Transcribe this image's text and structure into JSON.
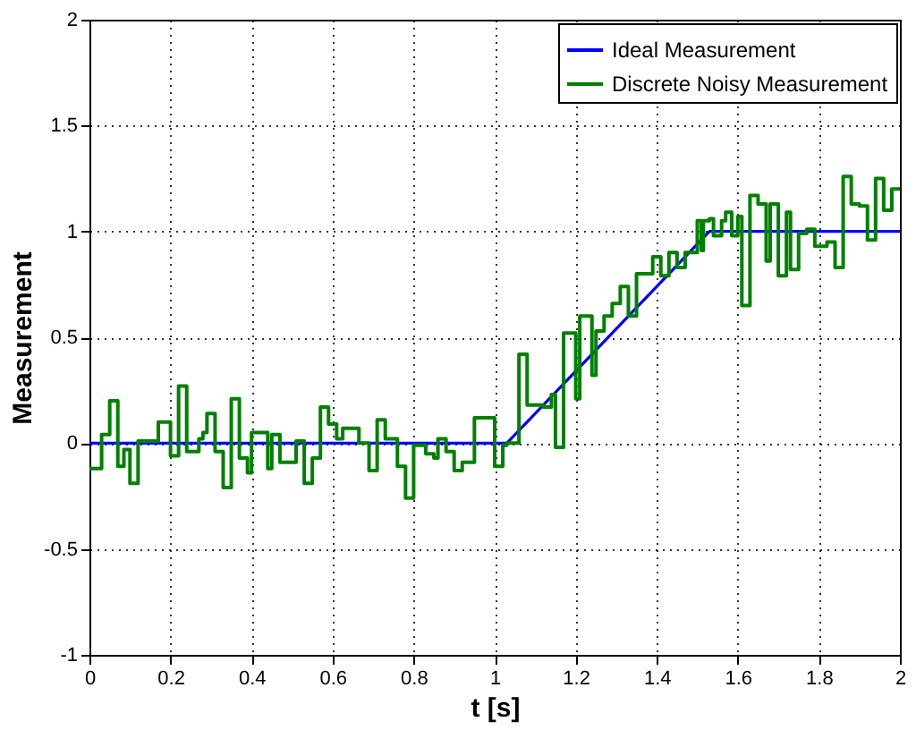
{
  "chart_data": {
    "type": "line",
    "xlabel": "t [s]",
    "ylabel": "Measurement",
    "xlim": [
      0,
      2
    ],
    "xticks": [
      0,
      0.2,
      0.4,
      0.6,
      0.8,
      1,
      1.2,
      1.4,
      1.6,
      1.8,
      2
    ],
    "ylim": [
      -1,
      2
    ],
    "yticks": [
      -1,
      -0.5,
      0,
      0.5,
      1,
      1.5,
      2
    ],
    "grid": true,
    "legend": "top right",
    "marker": "none",
    "line_style": "solid",
    "series": [
      {
        "name": "Ideal Measurement",
        "color": "#0000ff",
        "x": [
          0,
          1.03,
          1.53,
          2
        ],
        "values": [
          0,
          0,
          1,
          1
        ]
      },
      {
        "name": "Discrete Noisy Measurement",
        "color": "#008000",
        "type": "step",
        "x": [
          0,
          0.03,
          0.05,
          0.07,
          0.085,
          0.1,
          0.12,
          0.17,
          0.2,
          0.22,
          0.24,
          0.27,
          0.28,
          0.29,
          0.31,
          0.33,
          0.35,
          0.37,
          0.39,
          0.4,
          0.44,
          0.45,
          0.47,
          0.51,
          0.53,
          0.55,
          0.57,
          0.59,
          0.61,
          0.625,
          0.665,
          0.69,
          0.71,
          0.73,
          0.76,
          0.78,
          0.8,
          0.83,
          0.85,
          0.86,
          0.88,
          0.9,
          0.92,
          0.95,
          1.0,
          1.02,
          1.03,
          1.06,
          1.08,
          1.12,
          1.14,
          1.15,
          1.17,
          1.2,
          1.21,
          1.24,
          1.25,
          1.27,
          1.29,
          1.31,
          1.33,
          1.35,
          1.39,
          1.41,
          1.43,
          1.45,
          1.47,
          1.5,
          1.51,
          1.515,
          1.53,
          1.54,
          1.56,
          1.57,
          1.585,
          1.6,
          1.61,
          1.63,
          1.65,
          1.67,
          1.68,
          1.7,
          1.72,
          1.73,
          1.75,
          1.77,
          1.79,
          1.82,
          1.84,
          1.86,
          1.88,
          1.9,
          1.92,
          1.94,
          1.96,
          1.98,
          2.0
        ],
        "values": [
          -0.12,
          0.04,
          0.2,
          -0.11,
          -0.03,
          -0.19,
          0.01,
          0.1,
          -0.06,
          0.27,
          -0.04,
          0.02,
          0.05,
          0.14,
          -0.04,
          -0.21,
          0.21,
          -0.07,
          -0.14,
          0.05,
          -0.12,
          0.04,
          -0.09,
          0.01,
          -0.19,
          -0.07,
          0.17,
          0.09,
          0.02,
          0.07,
          0,
          -0.13,
          0.11,
          0.02,
          -0.11,
          -0.26,
          -0.01,
          -0.05,
          -0.07,
          0.02,
          -0.04,
          -0.13,
          -0.09,
          0.12,
          -0.11,
          -0.01,
          0,
          0.42,
          0.18,
          0.17,
          0.23,
          -0.02,
          0.52,
          0.21,
          0.6,
          0.32,
          0.53,
          0.6,
          0.66,
          0.74,
          0.6,
          0.8,
          0.88,
          0.79,
          0.9,
          0.83,
          0.9,
          1.05,
          0.91,
          1.05,
          1.06,
          0.98,
          1.05,
          1.09,
          0.98,
          1.07,
          0.65,
          1.17,
          1.13,
          0.86,
          1.13,
          0.79,
          1.09,
          0.82,
          0.99,
          1.01,
          0.93,
          0.95,
          0.83,
          1.26,
          1.13,
          1.12,
          0.96,
          1.25,
          1.1,
          1.2,
          1.2
        ]
      }
    ]
  }
}
